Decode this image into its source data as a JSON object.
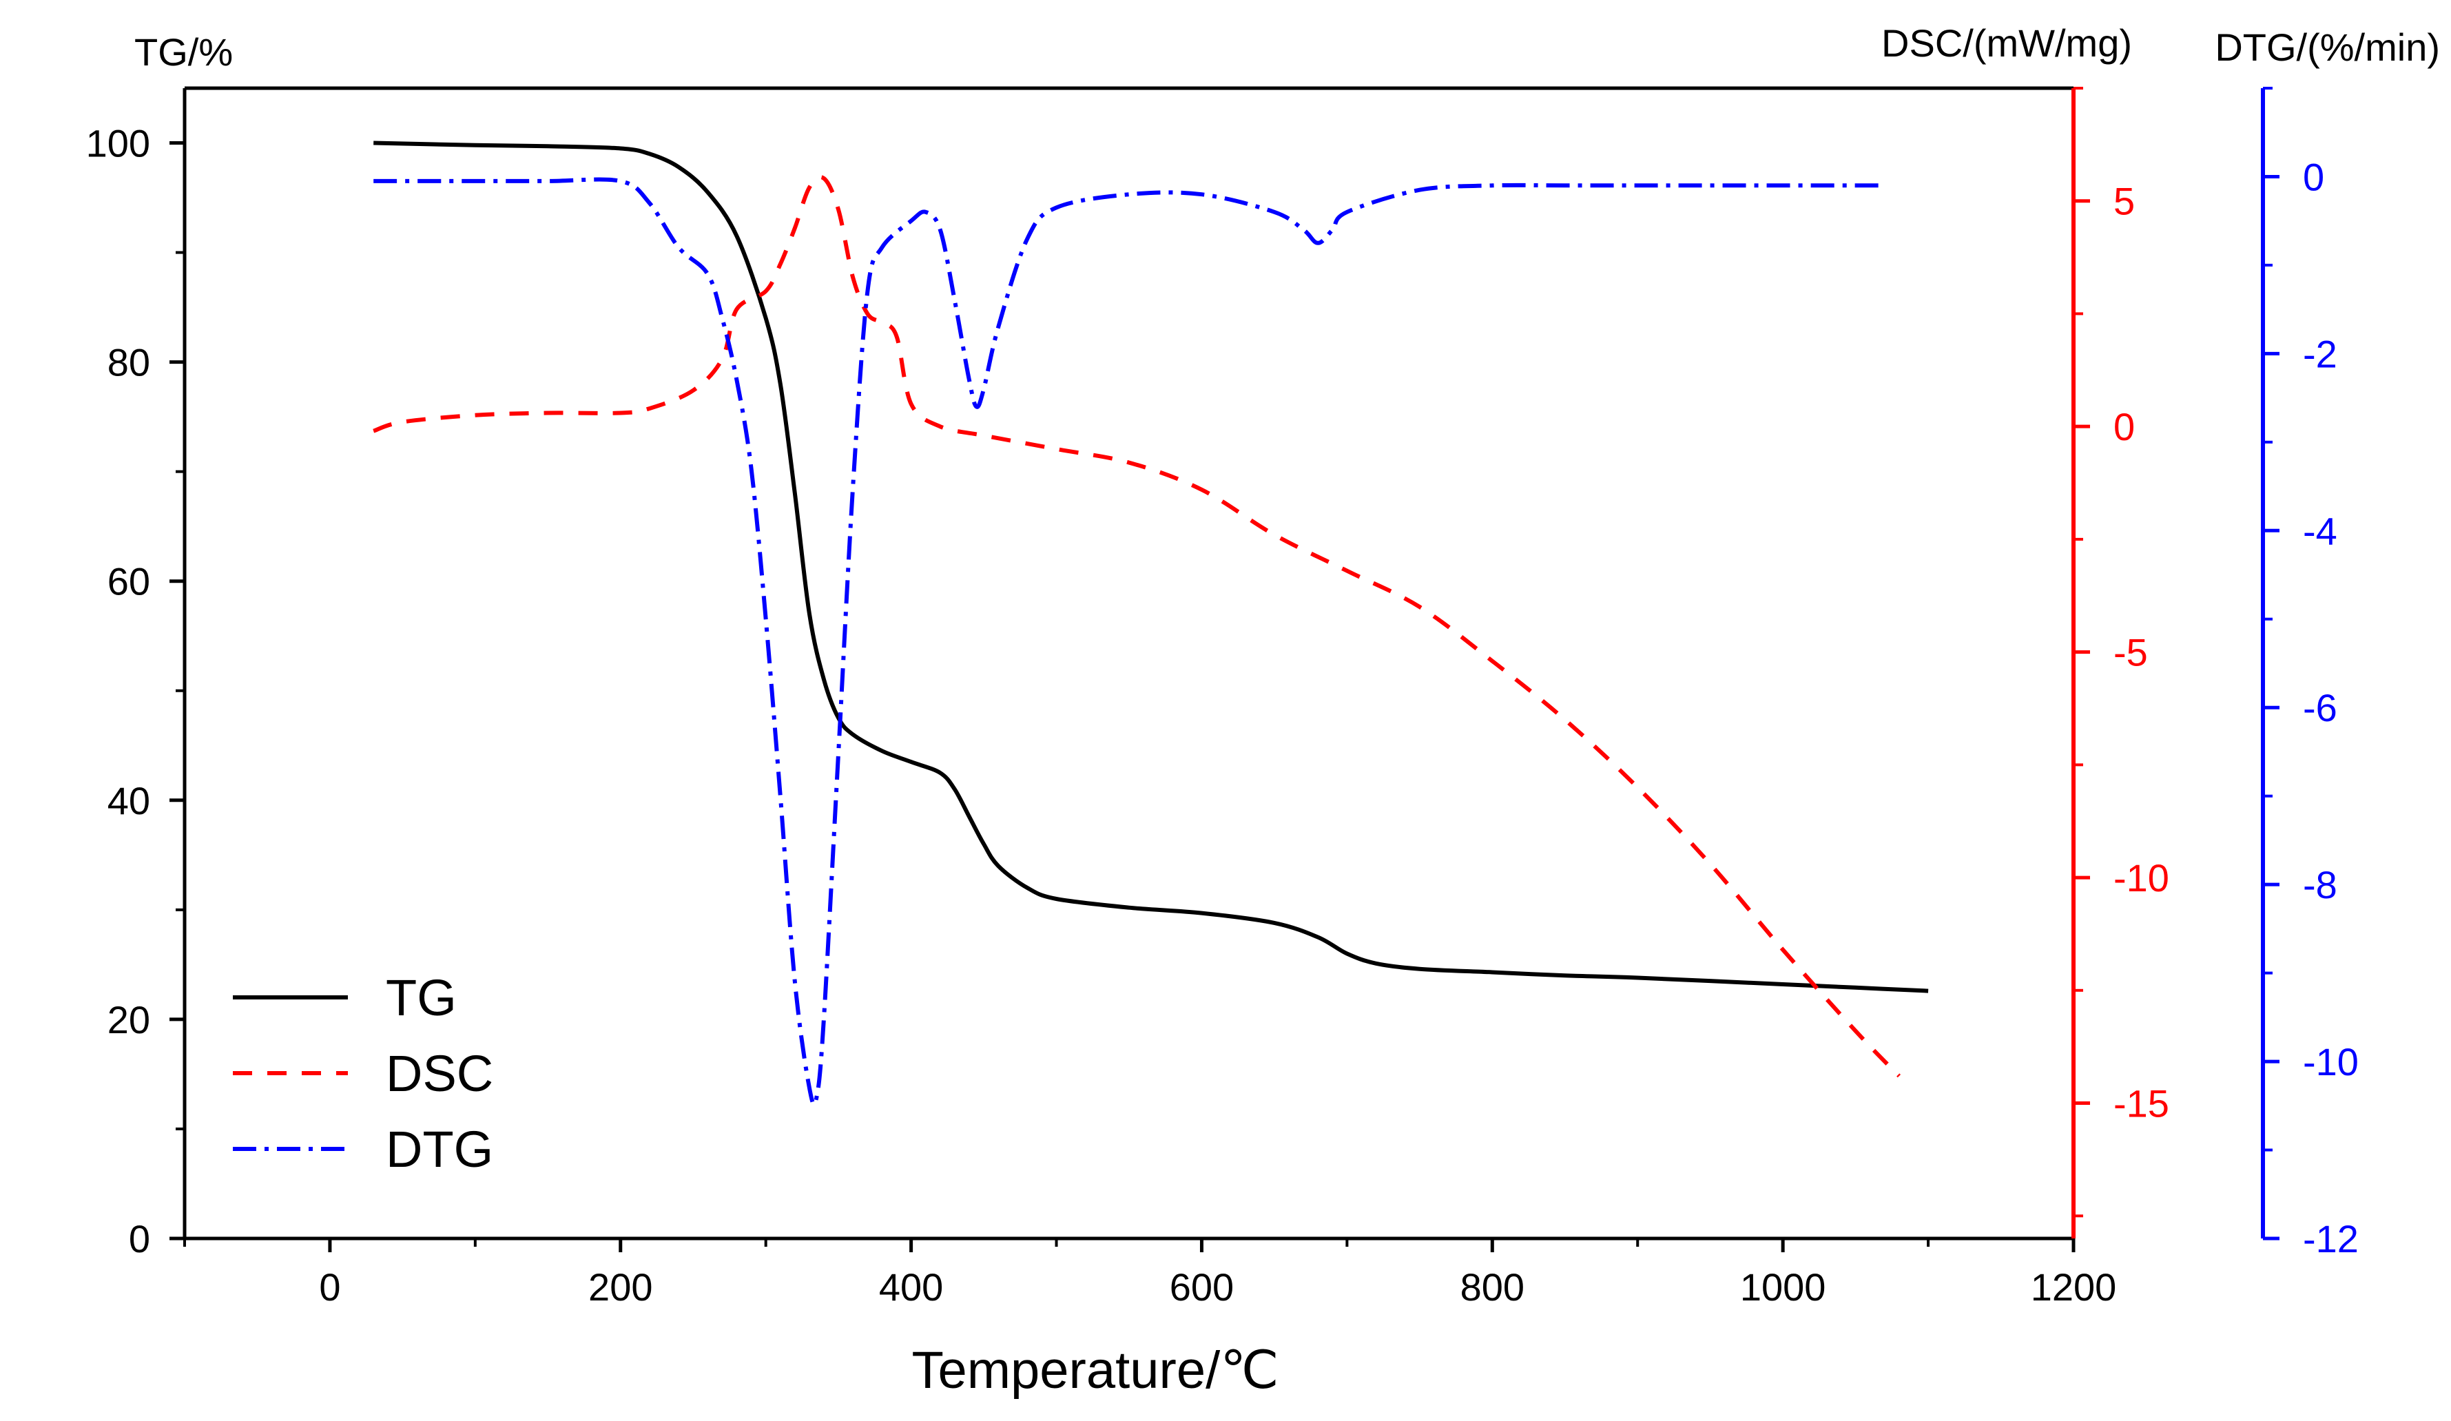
{
  "chart_data": {
    "type": "line",
    "xlabel": "Temperature/℃",
    "xlim": [
      -100,
      1200
    ],
    "x_ticks": [
      0,
      200,
      400,
      600,
      800,
      1000,
      1200
    ],
    "axes": {
      "tg": {
        "label": "TG/%",
        "ylim": [
          0,
          105
        ],
        "ticks": [
          0,
          20,
          40,
          60,
          80,
          100
        ],
        "color": "#000000"
      },
      "dsc": {
        "label": "DSC/(mW/mg)",
        "ylim": [
          -18,
          7.5
        ],
        "ticks": [
          -15,
          -10,
          -5,
          0,
          5
        ],
        "color": "#ff0000"
      },
      "dtg": {
        "label": "DTG/(%/min)",
        "ylim": [
          -12,
          1
        ],
        "ticks": [
          -12,
          -10,
          -8,
          -6,
          -4,
          -2,
          0
        ],
        "color": "#0000ff"
      }
    },
    "series": [
      {
        "name": "TG",
        "axis": "tg",
        "color": "#000000",
        "dash": "",
        "x": [
          30,
          100,
          150,
          200,
          220,
          240,
          260,
          280,
          300,
          310,
          320,
          330,
          340,
          350,
          360,
          380,
          400,
          420,
          430,
          440,
          450,
          460,
          480,
          500,
          550,
          600,
          650,
          680,
          700,
          720,
          750,
          800,
          850,
          900,
          1000,
          1050,
          1100
        ],
        "y": [
          100,
          99.8,
          99.7,
          99.5,
          99,
          97.8,
          95.5,
          91.5,
          84,
          78,
          68,
          57,
          51,
          47.5,
          46,
          44.5,
          43.5,
          42.5,
          41,
          38.5,
          36,
          34,
          32,
          31,
          30.2,
          29.7,
          28.8,
          27.5,
          26,
          25.1,
          24.6,
          24.3,
          24,
          23.8,
          23.2,
          22.9,
          22.6
        ]
      },
      {
        "name": "DSC",
        "axis": "dsc",
        "color": "#ff0000",
        "dash": "28 22",
        "x": [
          30,
          50,
          100,
          150,
          200,
          220,
          250,
          270,
          280,
          300,
          310,
          320,
          330,
          340,
          350,
          360,
          370,
          380,
          390,
          400,
          420,
          450,
          500,
          550,
          600,
          650,
          700,
          750,
          800,
          850,
          900,
          950,
          1000,
          1050,
          1080
        ],
        "y": [
          -0.1,
          0.1,
          0.25,
          0.3,
          0.3,
          0.4,
          0.8,
          1.5,
          2.6,
          3.0,
          3.6,
          4.4,
          5.3,
          5.5,
          4.8,
          3.3,
          2.5,
          2.3,
          2.0,
          0.5,
          0.0,
          -0.2,
          -0.5,
          -0.8,
          -1.4,
          -2.4,
          -3.2,
          -4.0,
          -5.2,
          -6.5,
          -8.0,
          -9.7,
          -11.6,
          -13.4,
          -14.4
        ]
      },
      {
        "name": "DTG",
        "axis": "dtg",
        "color": "#0000ff",
        "dash": "34 12 6 12",
        "x": [
          30,
          100,
          150,
          200,
          220,
          240,
          260,
          270,
          280,
          290,
          300,
          310,
          320,
          330,
          335,
          340,
          350,
          360,
          370,
          380,
          400,
          410,
          420,
          430,
          440,
          445,
          450,
          460,
          480,
          500,
          550,
          600,
          650,
          670,
          680,
          690,
          700,
          750,
          800,
          850,
          900,
          950,
          1000,
          1050,
          1070
        ],
        "y": [
          -0.05,
          -0.05,
          -0.05,
          -0.05,
          -0.3,
          -0.8,
          -1.1,
          -1.6,
          -2.3,
          -3.3,
          -5.0,
          -7.0,
          -9.1,
          -10.3,
          -10.4,
          -9.5,
          -6.5,
          -3.5,
          -1.3,
          -0.8,
          -0.5,
          -0.4,
          -0.6,
          -1.4,
          -2.3,
          -2.6,
          -2.4,
          -1.7,
          -0.7,
          -0.35,
          -0.2,
          -0.2,
          -0.4,
          -0.6,
          -0.75,
          -0.6,
          -0.4,
          -0.15,
          -0.1,
          -0.1,
          -0.1,
          -0.1,
          -0.1,
          -0.1,
          -0.1
        ]
      }
    ],
    "legend": [
      {
        "name": "TG",
        "color": "#000000",
        "dash": ""
      },
      {
        "name": "DSC",
        "color": "#ff0000",
        "dash": "28 22"
      },
      {
        "name": "DTG",
        "color": "#0000ff",
        "dash": "34 12 6 12"
      }
    ],
    "legend_position": "bottom-left",
    "grid": false
  }
}
